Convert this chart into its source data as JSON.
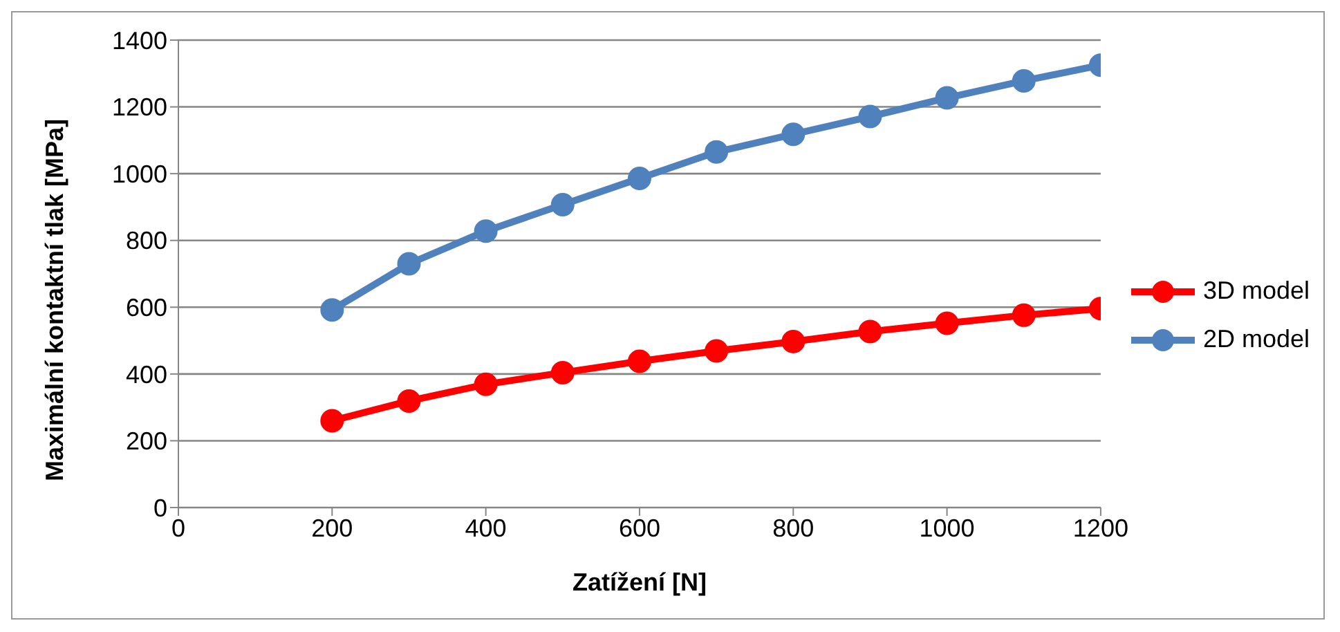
{
  "chart_data": {
    "type": "line",
    "xlabel": "Zatížení [N]",
    "ylabel": "Maximální kontaktní tlak [MPa]",
    "x": [
      200,
      300,
      400,
      500,
      600,
      700,
      800,
      900,
      1000,
      1100,
      1200
    ],
    "series": [
      {
        "name": "3D model",
        "color": "#ff0000",
        "values": [
          260,
          319,
          369,
          404,
          438,
          469,
          497,
          527,
          552,
          576,
          596
        ]
      },
      {
        "name": "2D model",
        "color": "#4f81bd",
        "values": [
          592,
          730,
          828,
          907,
          986,
          1065,
          1118,
          1171,
          1227,
          1278,
          1325
        ]
      }
    ],
    "xlim": [
      0,
      1200
    ],
    "xticks": [
      0,
      200,
      400,
      600,
      800,
      1000,
      1200
    ],
    "ylim": [
      0,
      1400
    ],
    "yticks": [
      0,
      200,
      400,
      600,
      800,
      1000,
      1200,
      1400
    ],
    "grid": "y",
    "legend": "right",
    "marker": "circle",
    "line_style": "solid"
  }
}
